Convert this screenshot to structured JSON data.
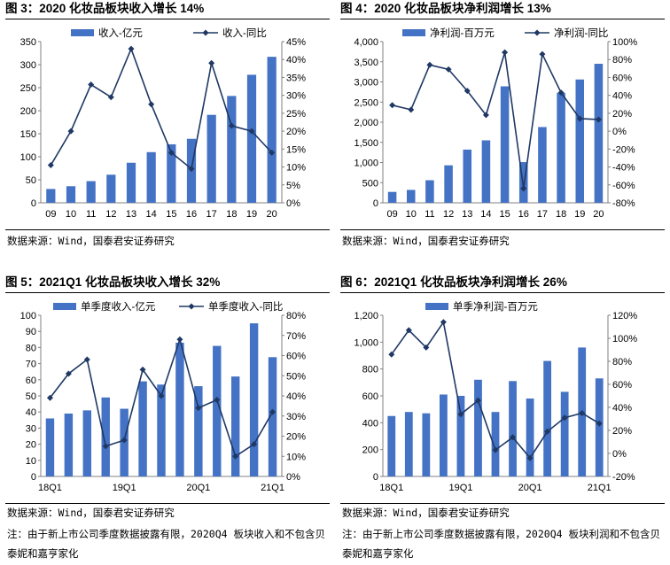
{
  "panels": [
    {
      "title": "图 3：2020 化妆品板块收入增长 14%",
      "source": "数据来源：Wind，国泰君安证券研究"
    },
    {
      "title": "图 4：2020 化妆品板块净利润增长 13%",
      "source": "数据来源：Wind，国泰君安证券研究"
    },
    {
      "title": "图 5：2021Q1 化妆品板块收入增长 32%",
      "source": "数据来源：Wind，国泰君安证券研究",
      "note": "注：由于新上市公司季度数据披露有限，2020Q4 板块收入和不包含贝泰妮和嘉亨家化"
    },
    {
      "title": "图 6：2021Q1 化妆品板块净利润增长 26%",
      "source": "数据来源：Wind，国泰君安证券研究",
      "note": "注：由于新上市公司季度数据披露有限，2020Q4 板块利润和不包含贝泰妮和嘉亨家化"
    }
  ],
  "chart_data": [
    {
      "type": "bar",
      "categories": [
        "09",
        "10",
        "11",
        "12",
        "13",
        "14",
        "15",
        "16",
        "17",
        "18",
        "19",
        "20"
      ],
      "series": [
        {
          "name": "收入-亿元",
          "type": "bar",
          "axis": "left",
          "values": [
            30,
            36,
            47,
            61,
            87,
            110,
            127,
            139,
            191,
            232,
            278,
            317
          ]
        },
        {
          "name": "收入-同比",
          "type": "line",
          "axis": "right",
          "unit": "%",
          "values": [
            10.5,
            20,
            33,
            29.5,
            43,
            27.5,
            14,
            9.5,
            39,
            21.5,
            20,
            14
          ]
        }
      ],
      "y_left": {
        "min": 0,
        "max": 350,
        "step": 50,
        "ticks": [
          "0",
          "50",
          "100",
          "150",
          "200",
          "250",
          "300",
          "350"
        ]
      },
      "y_right": {
        "min": 0,
        "max": 45,
        "step": 5,
        "ticks": [
          "0%",
          "5%",
          "10%",
          "15%",
          "20%",
          "25%",
          "30%",
          "35%",
          "40%",
          "45%"
        ]
      },
      "bar_color": "#4472C4",
      "line_color": "#1F3864",
      "legend_position": "top"
    },
    {
      "type": "bar",
      "categories": [
        "09",
        "10",
        "11",
        "12",
        "13",
        "14",
        "15",
        "16",
        "17",
        "18",
        "19",
        "20"
      ],
      "series": [
        {
          "name": "净利润-百万元",
          "type": "bar",
          "axis": "left",
          "values": [
            270,
            320,
            560,
            930,
            1320,
            1550,
            2890,
            1010,
            1880,
            2730,
            3060,
            3450
          ]
        },
        {
          "name": "净利润-同比",
          "type": "line",
          "axis": "right",
          "unit": "%",
          "values": [
            29,
            24,
            74,
            69,
            45,
            18,
            88,
            -64,
            86,
            43,
            14,
            13
          ]
        }
      ],
      "y_left": {
        "min": 0,
        "max": 4000,
        "step": 500,
        "ticks": [
          "0",
          "500",
          "1,000",
          "1,500",
          "2,000",
          "2,500",
          "3,000",
          "3,500",
          "4,000"
        ]
      },
      "y_right": {
        "min": -80,
        "max": 100,
        "step": 20,
        "ticks": [
          "-80%",
          "-60%",
          "-40%",
          "-20%",
          "0%",
          "20%",
          "40%",
          "60%",
          "80%",
          "100%"
        ]
      },
      "bar_color": "#4472C4",
      "line_color": "#1F3864",
      "legend_position": "top"
    },
    {
      "type": "bar",
      "categories": [
        "18Q1",
        "18Q2",
        "18Q3",
        "18Q4",
        "19Q1",
        "19Q2",
        "19Q3",
        "19Q4",
        "20Q1",
        "20Q2",
        "20Q3",
        "20Q4",
        "21Q1"
      ],
      "x_tick_labels": [
        "18Q1",
        "",
        "",
        "",
        "19Q1",
        "",
        "",
        "",
        "20Q1",
        "",
        "",
        "",
        "21Q1"
      ],
      "series": [
        {
          "name": "单季度收入-亿元",
          "type": "bar",
          "axis": "left",
          "values": [
            36,
            39,
            41,
            49,
            42,
            59,
            57,
            83,
            56,
            81,
            62,
            95,
            74
          ]
        },
        {
          "name": "单季度收入-同比",
          "type": "line",
          "axis": "right",
          "unit": "%",
          "values": [
            39,
            51,
            58,
            15,
            18,
            53,
            40,
            68,
            34,
            38,
            10,
            16,
            32
          ]
        }
      ],
      "y_left": {
        "min": 0,
        "max": 100,
        "step": 10,
        "ticks": [
          "0",
          "10",
          "20",
          "30",
          "40",
          "50",
          "60",
          "70",
          "80",
          "90",
          "100"
        ]
      },
      "y_right": {
        "min": 0,
        "max": 80,
        "step": 10,
        "ticks": [
          "0%",
          "10%",
          "20%",
          "30%",
          "40%",
          "50%",
          "60%",
          "70%",
          "80%"
        ]
      },
      "bar_color": "#4472C4",
      "line_color": "#1F3864",
      "legend_position": "top"
    },
    {
      "type": "bar",
      "categories": [
        "18Q1",
        "18Q2",
        "18Q3",
        "18Q4",
        "19Q1",
        "19Q2",
        "19Q3",
        "19Q4",
        "20Q1",
        "20Q2",
        "20Q3",
        "20Q4",
        "21Q1"
      ],
      "x_tick_labels": [
        "18Q1",
        "",
        "",
        "",
        "19Q1",
        "",
        "",
        "",
        "20Q1",
        "",
        "",
        "",
        "21Q1"
      ],
      "series": [
        {
          "name": "单季净利润-百万元",
          "type": "bar",
          "axis": "left",
          "values": [
            450,
            480,
            470,
            610,
            600,
            720,
            480,
            710,
            580,
            860,
            630,
            960,
            730
          ]
        },
        {
          "type": "line",
          "axis": "right",
          "unit": "%",
          "values": [
            86,
            107,
            92,
            114,
            34,
            46,
            3,
            14,
            -4,
            19,
            31,
            35,
            26
          ]
        }
      ],
      "y_left": {
        "min": 0,
        "max": 1200,
        "step": 200,
        "ticks": [
          "0",
          "200",
          "400",
          "600",
          "800",
          "1,000",
          "1,200"
        ]
      },
      "y_right": {
        "min": -20,
        "max": 120,
        "step": 20,
        "ticks": [
          "-20%",
          "0%",
          "20%",
          "40%",
          "60%",
          "80%",
          "100%",
          "120%"
        ]
      },
      "bar_color": "#4472C4",
      "line_color": "#1F3864",
      "legend_position": "top"
    }
  ]
}
